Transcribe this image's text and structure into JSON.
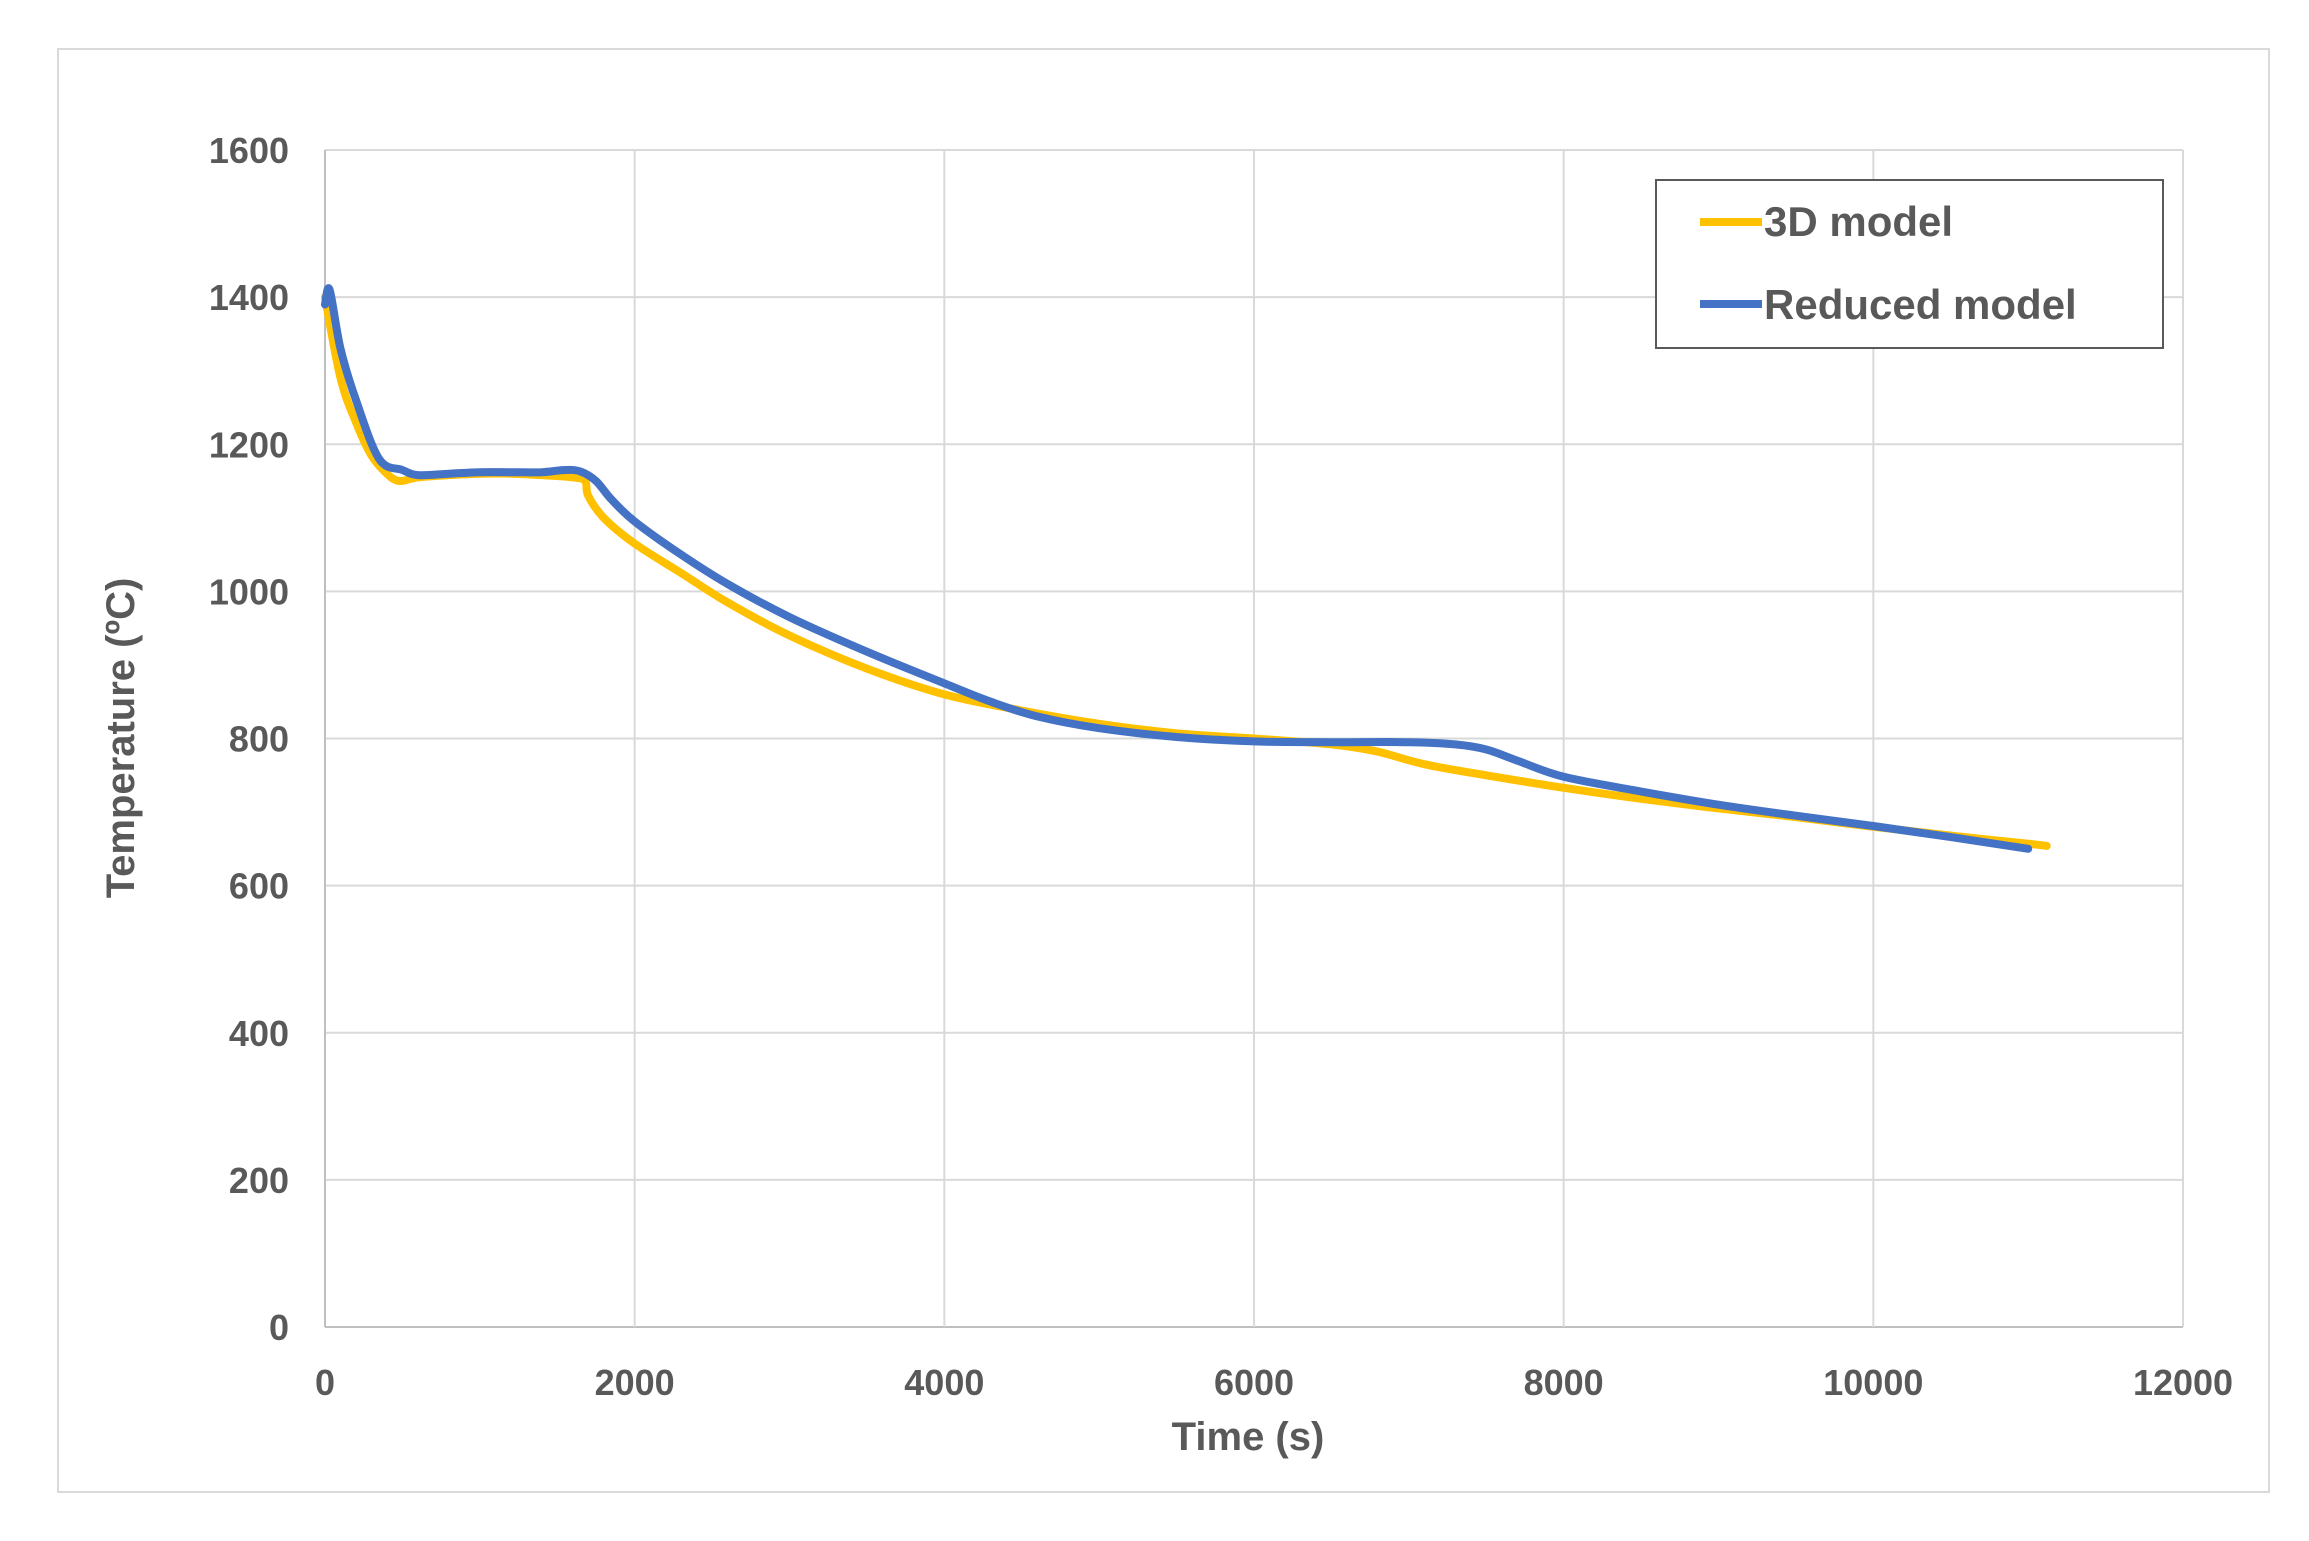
{
  "chart_data": {
    "type": "line",
    "title": "",
    "xlabel": "Time (s)",
    "ylabel": "Temperature (ºC)",
    "xlim": [
      0,
      12000
    ],
    "ylim": [
      0,
      1600
    ],
    "xticks": [
      0,
      2000,
      4000,
      6000,
      8000,
      10000,
      12000
    ],
    "yticks": [
      0,
      200,
      400,
      600,
      800,
      1000,
      1200,
      1400,
      1600
    ],
    "xtick_labels": [
      "0",
      "2000",
      "4000",
      "6000",
      "8000",
      "10000",
      "12000"
    ],
    "ytick_labels": [
      "0",
      "200",
      "400",
      "600",
      "800",
      "1000",
      "1200",
      "1400",
      "1600"
    ],
    "grid": true,
    "legend_position": "top-right",
    "series": [
      {
        "name": "3D model",
        "color": "#ffc000",
        "x": [
          0,
          100,
          200,
          300,
          400,
          480,
          600,
          800,
          1000,
          1200,
          1400,
          1600,
          1680,
          1700,
          1800,
          2000,
          2300,
          2600,
          3000,
          3500,
          4000,
          4500,
          5000,
          5500,
          6000,
          6500,
          6800,
          7100,
          7500,
          8000,
          8500,
          9000,
          9500,
          10000,
          10500,
          11000,
          11120
        ],
        "y": [
          1400,
          1290,
          1230,
          1185,
          1160,
          1150,
          1155,
          1158,
          1160,
          1160,
          1158,
          1155,
          1150,
          1130,
          1100,
          1065,
          1025,
          985,
          940,
          895,
          860,
          838,
          820,
          807,
          800,
          792,
          782,
          765,
          750,
          733,
          718,
          705,
          693,
          680,
          668,
          657,
          654
        ]
      },
      {
        "name": "Reduced model",
        "color": "#4472c4",
        "x": [
          0,
          30,
          100,
          200,
          350,
          500,
          600,
          800,
          1000,
          1200,
          1400,
          1550,
          1650,
          1750,
          1850,
          2000,
          2300,
          2600,
          3000,
          3500,
          4000,
          4300,
          4600,
          5000,
          5500,
          6000,
          6500,
          7000,
          7300,
          7500,
          7700,
          8000,
          8500,
          9000,
          9500,
          10000,
          10500,
          11000
        ],
        "y": [
          1390,
          1410,
          1330,
          1260,
          1180,
          1165,
          1158,
          1160,
          1162,
          1162,
          1162,
          1165,
          1163,
          1150,
          1125,
          1095,
          1050,
          1010,
          965,
          918,
          875,
          850,
          830,
          814,
          802,
          796,
          795,
          795,
          792,
          785,
          770,
          748,
          728,
          710,
          695,
          681,
          666,
          650
        ]
      }
    ]
  }
}
